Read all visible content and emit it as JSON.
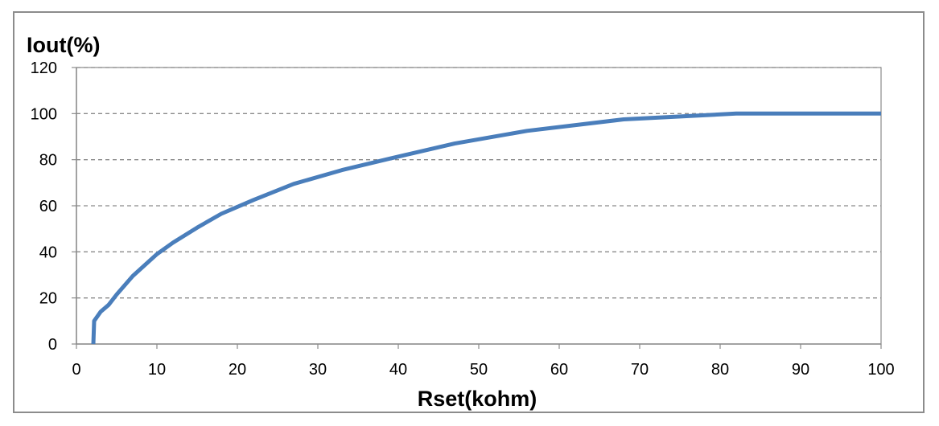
{
  "chart_data": {
    "type": "line",
    "title": "",
    "xlabel": "Rset(kohm)",
    "ylabel": "Iout(%)",
    "xlim": [
      0,
      100
    ],
    "ylim": [
      0,
      120
    ],
    "xticks": [
      0,
      10,
      20,
      30,
      40,
      50,
      60,
      70,
      80,
      90,
      100
    ],
    "yticks": [
      0,
      20,
      40,
      60,
      80,
      100,
      120
    ],
    "grid": "horizontal dashed",
    "legend": "none",
    "series": [
      {
        "color": "#4a7ebb",
        "x": [
          2.1,
          2.2,
          3,
          4,
          5,
          7,
          10,
          12,
          15,
          18,
          22,
          27,
          33,
          39,
          47,
          56,
          68,
          82,
          100
        ],
        "y": [
          0,
          10,
          14,
          17,
          21.5,
          29.5,
          39,
          44,
          50.5,
          56.5,
          62.5,
          69.5,
          75.5,
          80.5,
          87,
          92.5,
          97.5,
          100,
          100
        ]
      }
    ]
  }
}
